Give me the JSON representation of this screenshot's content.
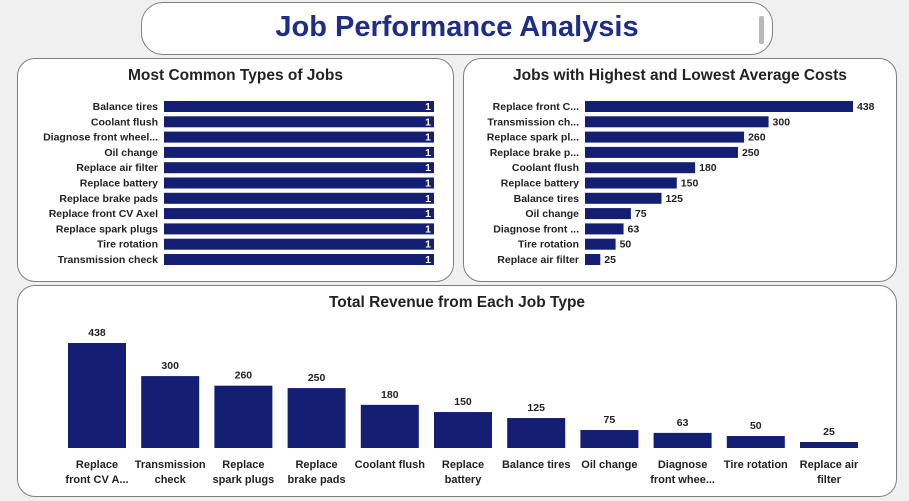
{
  "page_title": "Job Performance Analysis",
  "colors": {
    "bar": "#141f74",
    "title": "#1f2d8a"
  },
  "chart_data": [
    {
      "type": "bar",
      "orientation": "horizontal",
      "title": "Most Common Types of Jobs",
      "categories": [
        "Balance tires",
        "Coolant flush",
        "Diagnose front wheel...",
        "Oil change",
        "Replace air filter",
        "Replace battery",
        "Replace brake pads",
        "Replace front CV Axel",
        "Replace spark plugs",
        "Tire rotation",
        "Transmission check"
      ],
      "values": [
        1,
        1,
        1,
        1,
        1,
        1,
        1,
        1,
        1,
        1,
        1
      ],
      "xlim": [
        0,
        1
      ]
    },
    {
      "type": "bar",
      "orientation": "horizontal",
      "title": "Jobs with Highest and Lowest Average Costs",
      "categories": [
        "Replace front C...",
        "Transmission ch...",
        "Replace spark pl...",
        "Replace brake p...",
        "Coolant flush",
        "Replace battery",
        "Balance tires",
        "Oil change",
        "Diagnose front ...",
        "Tire rotation",
        "Replace air filter"
      ],
      "values": [
        438,
        300,
        260,
        250,
        180,
        150,
        125,
        75,
        63,
        50,
        25
      ],
      "xlim": [
        0,
        438
      ]
    },
    {
      "type": "bar",
      "orientation": "vertical",
      "title": "Total Revenue from Each Job Type",
      "categories": [
        [
          "Replace",
          "front CV A..."
        ],
        [
          "Transmission",
          "check"
        ],
        [
          "Replace",
          "spark plugs"
        ],
        [
          "Replace",
          "brake pads"
        ],
        [
          "Coolant flush"
        ],
        [
          "Replace",
          "battery"
        ],
        [
          "Balance tires"
        ],
        [
          "Oil change"
        ],
        [
          "Diagnose",
          "front whee..."
        ],
        [
          "Tire rotation"
        ],
        [
          "Replace air",
          "filter"
        ]
      ],
      "values": [
        438,
        300,
        260,
        250,
        180,
        150,
        125,
        75,
        63,
        50,
        25
      ],
      "ylim": [
        0,
        438
      ]
    }
  ]
}
